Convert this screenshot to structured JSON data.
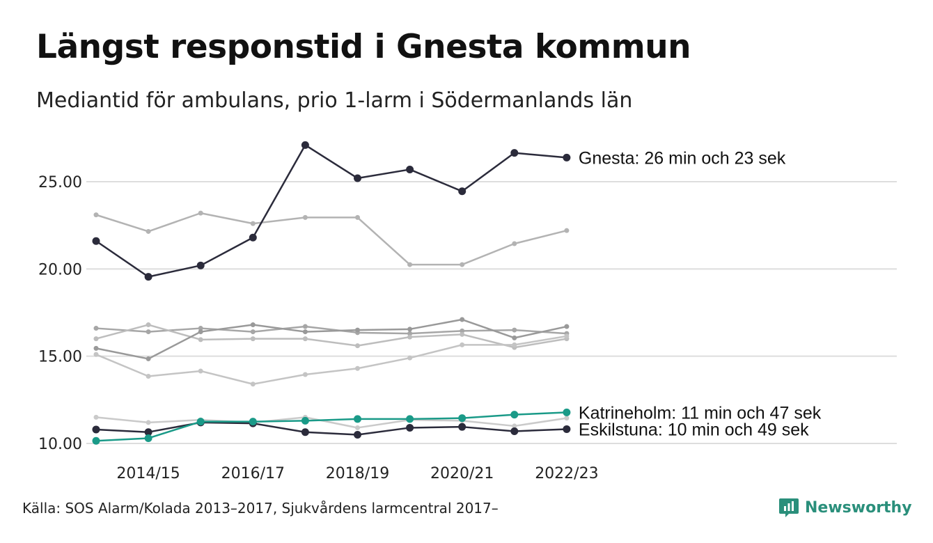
{
  "header": {
    "title": "Längst responstid i Gnesta kommun",
    "subtitle": "Mediantid för ambulans, prio 1-larm i Södermanlands län"
  },
  "footer": {
    "source": "Källa: SOS Alarm/Kolada 2013–2017, Sjukvårdens larmcentral 2017–",
    "brand": "Newsworthy"
  },
  "colors": {
    "highlight_dark": "#2b2b3b",
    "highlight_teal": "#1a9a88",
    "background_lines": [
      "#b3b3b3",
      "#a6a6a6",
      "#bdbdbd",
      "#999999",
      "#c4c4c4",
      "#cacaca"
    ],
    "grid": "#dddddd",
    "brand": "#2a8f7b"
  },
  "chart_data": {
    "type": "line",
    "categories": [
      "2013/14",
      "2014/15",
      "2015/16",
      "2016/17",
      "2017/18",
      "2018/19",
      "2019/20",
      "2020/21",
      "2021/22",
      "2022/23"
    ],
    "tick_labels": [
      "2014/15",
      "2016/17",
      "2018/19",
      "2020/21",
      "2022/23"
    ],
    "y_ticks": [
      "10.00",
      "15.00",
      "20.00",
      "25.00"
    ],
    "ylim": [
      9.5,
      28.5
    ],
    "grid": "horizontal",
    "series": [
      {
        "key": "bg1",
        "values": [
          23.1,
          22.15,
          23.2,
          22.6,
          22.95,
          22.95,
          20.25,
          20.25,
          21.45,
          22.2
        ],
        "highlight": false
      },
      {
        "key": "bg2",
        "values": [
          16.6,
          16.4,
          16.6,
          16.4,
          16.7,
          16.35,
          16.3,
          16.45,
          16.5,
          16.3
        ],
        "highlight": false
      },
      {
        "key": "bg3",
        "values": [
          16.0,
          16.8,
          15.95,
          16.0,
          16.0,
          15.6,
          16.1,
          16.25,
          15.5,
          16.0
        ],
        "highlight": false
      },
      {
        "key": "bg4",
        "values": [
          15.45,
          14.85,
          16.4,
          16.8,
          16.4,
          16.5,
          16.55,
          17.1,
          16.05,
          16.7
        ],
        "highlight": false
      },
      {
        "key": "bg5",
        "values": [
          15.1,
          13.85,
          14.15,
          13.4,
          13.95,
          14.3,
          14.9,
          15.65,
          15.65,
          16.15
        ],
        "highlight": false
      },
      {
        "key": "bg6",
        "values": [
          11.5,
          11.2,
          11.35,
          11.2,
          11.5,
          10.9,
          11.35,
          11.3,
          11.0,
          11.45
        ],
        "highlight": false
      },
      {
        "key": "eskilstuna",
        "name": "Eskilstuna",
        "label": "Eskilstuna: 10 min och 49 sek",
        "values": [
          10.8,
          10.65,
          11.2,
          11.15,
          10.65,
          10.5,
          10.9,
          10.95,
          10.7,
          10.82
        ],
        "highlight": "dark"
      },
      {
        "key": "katrineholm",
        "name": "Katrineholm",
        "label": "Katrineholm: 11 min och 47 sek",
        "values": [
          10.15,
          10.3,
          11.25,
          11.25,
          11.3,
          11.4,
          11.4,
          11.45,
          11.65,
          11.78
        ],
        "highlight": "teal"
      },
      {
        "key": "gnesta",
        "name": "Gnesta",
        "label": "Gnesta: 26 min och 23 sek",
        "values": [
          21.6,
          19.55,
          20.2,
          21.8,
          27.1,
          25.2,
          25.7,
          24.45,
          26.65,
          26.38
        ],
        "highlight": "dark"
      }
    ]
  }
}
